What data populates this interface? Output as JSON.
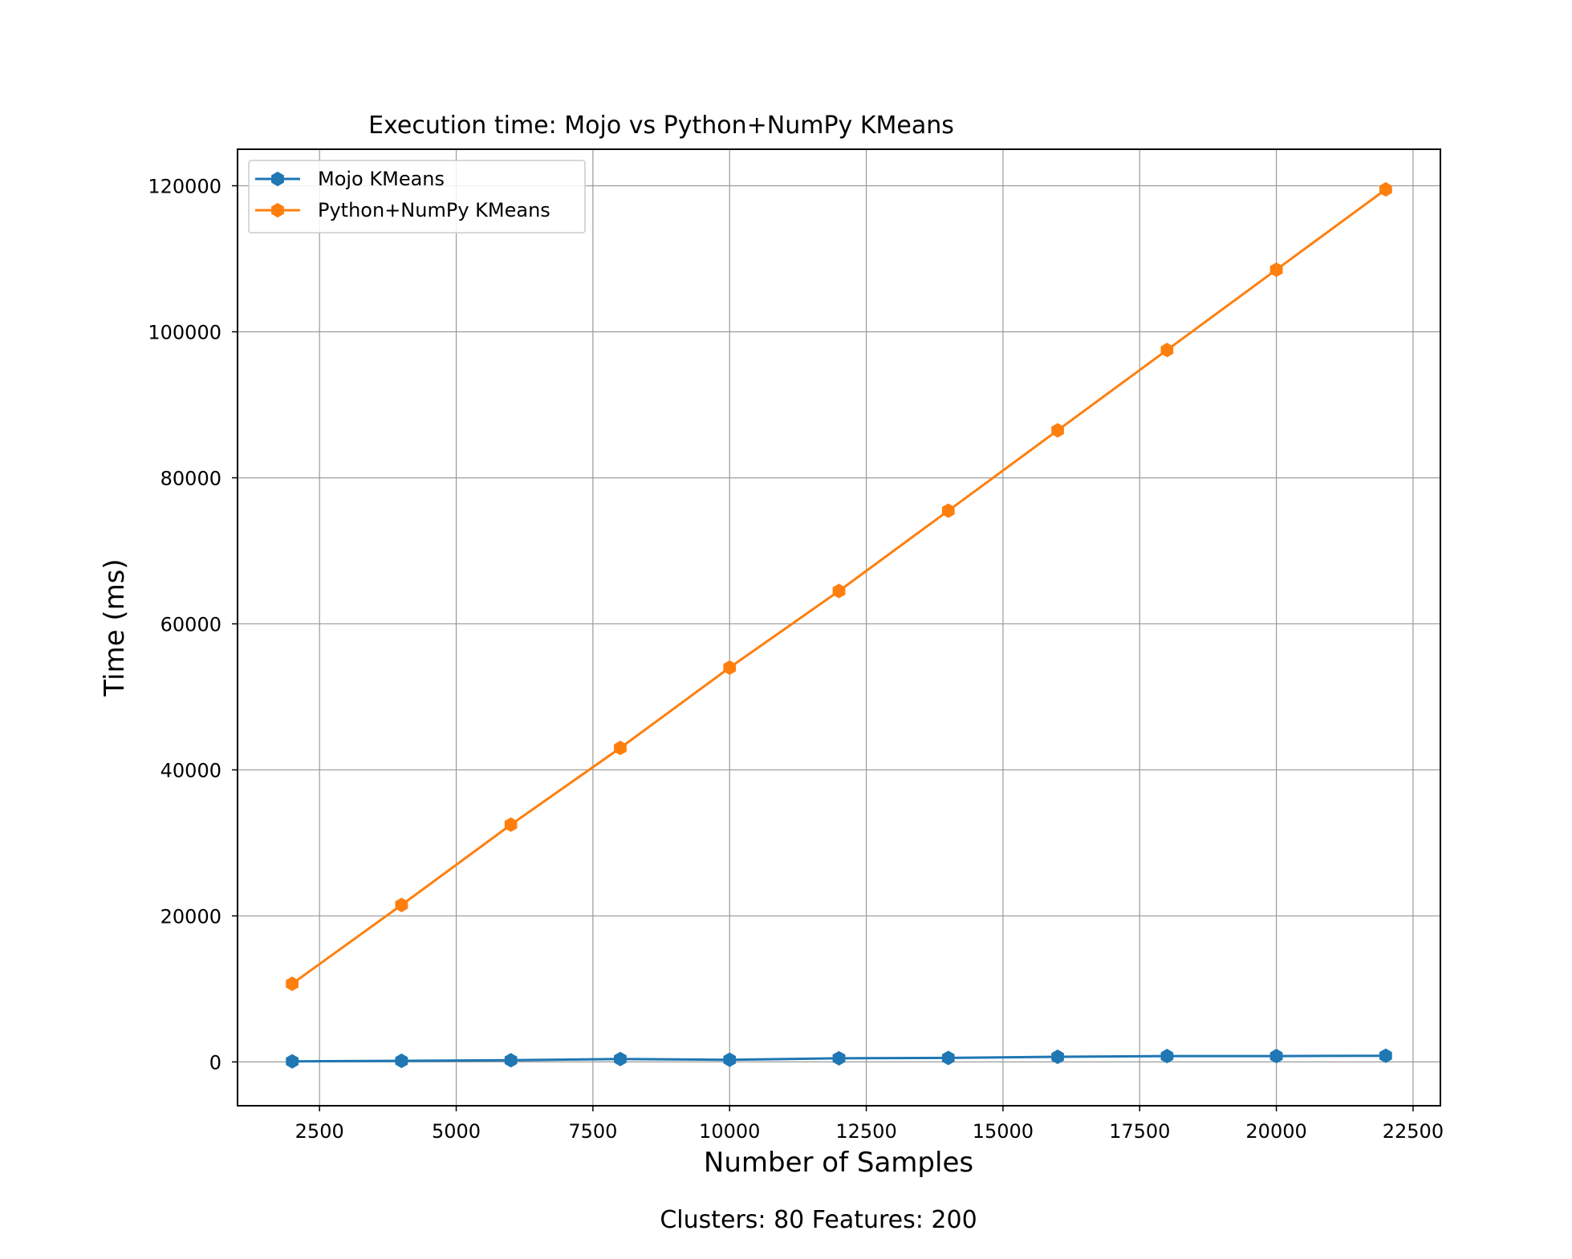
{
  "chart_data": {
    "type": "line",
    "title": "Execution time: Mojo vs Python+NumPy KMeans",
    "xlabel": "Number of Samples",
    "ylabel": "Time (ms)",
    "caption": "Clusters: 80 Features: 200",
    "xlim": [
      1000,
      23000
    ],
    "ylim": [
      -6000,
      125000
    ],
    "xticks": [
      2500,
      5000,
      7500,
      10000,
      12500,
      15000,
      17500,
      20000,
      22500
    ],
    "yticks": [
      0,
      20000,
      40000,
      60000,
      80000,
      100000,
      120000
    ],
    "grid": true,
    "legend_position": "top-left",
    "x": [
      2000,
      4000,
      6000,
      8000,
      10000,
      12000,
      14000,
      16000,
      18000,
      20000,
      22000
    ],
    "series": [
      {
        "name": "Mojo KMeans",
        "color": "#1f77b4",
        "marker": "hexagon",
        "values": [
          80,
          150,
          230,
          400,
          300,
          500,
          550,
          700,
          800,
          800,
          850
        ]
      },
      {
        "name": "Python+NumPy KMeans",
        "color": "#ff7f0e",
        "marker": "hexagon",
        "values": [
          10700,
          21500,
          32500,
          43000,
          54000,
          64500,
          75500,
          86500,
          97500,
          108500,
          119500
        ]
      }
    ]
  }
}
